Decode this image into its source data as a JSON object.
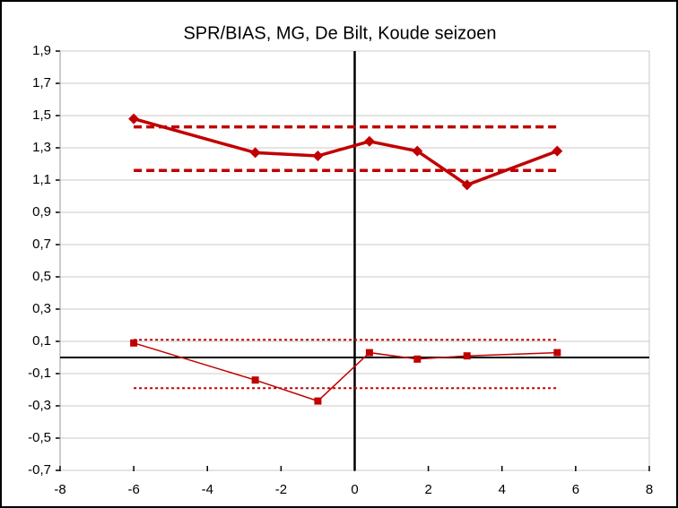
{
  "chart_data": {
    "type": "line",
    "title": "SPR/BIAS, MG, De Bilt, Koude seizoen",
    "xlim": [
      -8,
      8
    ],
    "xticks": [
      -8,
      -6,
      -4,
      -2,
      0,
      2,
      4,
      6,
      8
    ],
    "ylim": [
      -0.7,
      1.9
    ],
    "yticks": [
      {
        "value": 1.9,
        "label": "1,9"
      },
      {
        "value": 1.7,
        "label": "1,7"
      },
      {
        "value": 1.5,
        "label": "1,5"
      },
      {
        "value": 1.3,
        "label": "1,3"
      },
      {
        "value": 1.1,
        "label": "1,1"
      },
      {
        "value": 0.9,
        "label": "0,9"
      },
      {
        "value": 0.7,
        "label": "0,7"
      },
      {
        "value": 0.5,
        "label": "0,5"
      },
      {
        "value": 0.3,
        "label": "0,3"
      },
      {
        "value": 0.1,
        "label": "0,1"
      },
      {
        "value": -0.1,
        "label": "-0,1"
      },
      {
        "value": -0.3,
        "label": "-0,3"
      },
      {
        "value": -0.5,
        "label": "-0,5"
      },
      {
        "value": -0.7,
        "label": "-0,7"
      }
    ],
    "grid": true,
    "series": [
      {
        "color": "#c00000",
        "marker": "diamond",
        "line_width": 3.5,
        "x": [
          -6,
          -2.7,
          -1,
          0.4,
          1.7,
          3.05,
          5.5
        ],
        "values": [
          1.48,
          1.27,
          1.25,
          1.34,
          1.28,
          1.07,
          1.28
        ]
      },
      {
        "color": "#c00000",
        "marker": "square",
        "line_width": 1.5,
        "x": [
          -6,
          -2.7,
          -1,
          0.4,
          1.7,
          3.05,
          5.5
        ],
        "values": [
          0.09,
          -0.14,
          -0.27,
          0.03,
          -0.01,
          0.01,
          0.03
        ]
      }
    ],
    "reference_lines": [
      {
        "y": 1.43,
        "xrange": [
          -6,
          5.5
        ],
        "style": "dashed",
        "color": "#c00000"
      },
      {
        "y": 1.16,
        "xrange": [
          -6,
          5.5
        ],
        "style": "dashed",
        "color": "#c00000"
      },
      {
        "y": 0.11,
        "xrange": [
          -6,
          5.5
        ],
        "style": "dotted",
        "color": "#c00000"
      },
      {
        "y": -0.19,
        "xrange": [
          -6,
          5.5
        ],
        "style": "dotted",
        "color": "#c00000"
      }
    ]
  }
}
